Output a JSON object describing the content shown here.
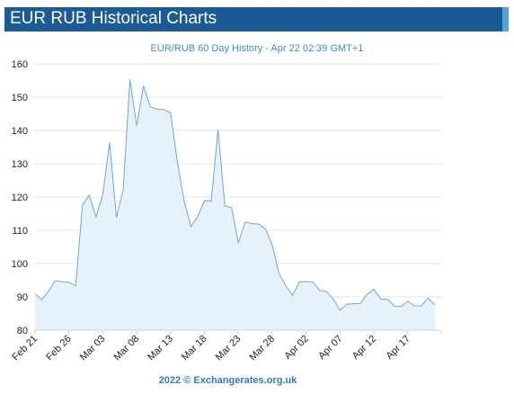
{
  "header": {
    "title": "EUR RUB Historical Charts"
  },
  "footer": {
    "text": "2022 © Exchangerates.org.uk"
  },
  "chart_data": {
    "type": "area",
    "title": "EUR/RUB 60 Day History - Apr 22 02:39 GMT+1",
    "xlabel": "",
    "ylabel": "",
    "ylim": [
      80,
      160
    ],
    "yticks": [
      80,
      90,
      100,
      110,
      120,
      130,
      140,
      150,
      160
    ],
    "xtick_labels": [
      "Feb 21",
      "Feb 26",
      "Mar 03",
      "Mar 08",
      "Mar 13",
      "Mar 18",
      "Mar 23",
      "Mar 28",
      "Apr 02",
      "Apr 07",
      "Apr 12",
      "Apr 17"
    ],
    "xtick_day_index": [
      0,
      5,
      10,
      15,
      20,
      25,
      30,
      35,
      40,
      45,
      50,
      55
    ],
    "grid": true,
    "colors": {
      "line": "#6aa9d6",
      "fill": "#e6f1fa",
      "grid": "#e4e4e4"
    },
    "series": [
      {
        "values": [
          90.8,
          89.2,
          91.8,
          94.9,
          94.5,
          94.4,
          93.3,
          117.7,
          120.5,
          114.0,
          120.8,
          136.4,
          113.9,
          122.0,
          155.3,
          141.4,
          153.4,
          147.1,
          146.4,
          146.3,
          145.3,
          130.5,
          118.8,
          111.1,
          114.1,
          118.9,
          118.8,
          140.3,
          117.3,
          116.8,
          106.2,
          112.5,
          112.0,
          111.9,
          110.4,
          105.6,
          97.0,
          93.3,
          90.4,
          94.5,
          94.6,
          94.5,
          91.9,
          91.6,
          89.3,
          86.0,
          87.8,
          87.9,
          88.0,
          90.8,
          92.3,
          89.3,
          89.3,
          87.2,
          87.1,
          88.7,
          87.3,
          87.3,
          89.6,
          87.6
        ]
      }
    ]
  }
}
